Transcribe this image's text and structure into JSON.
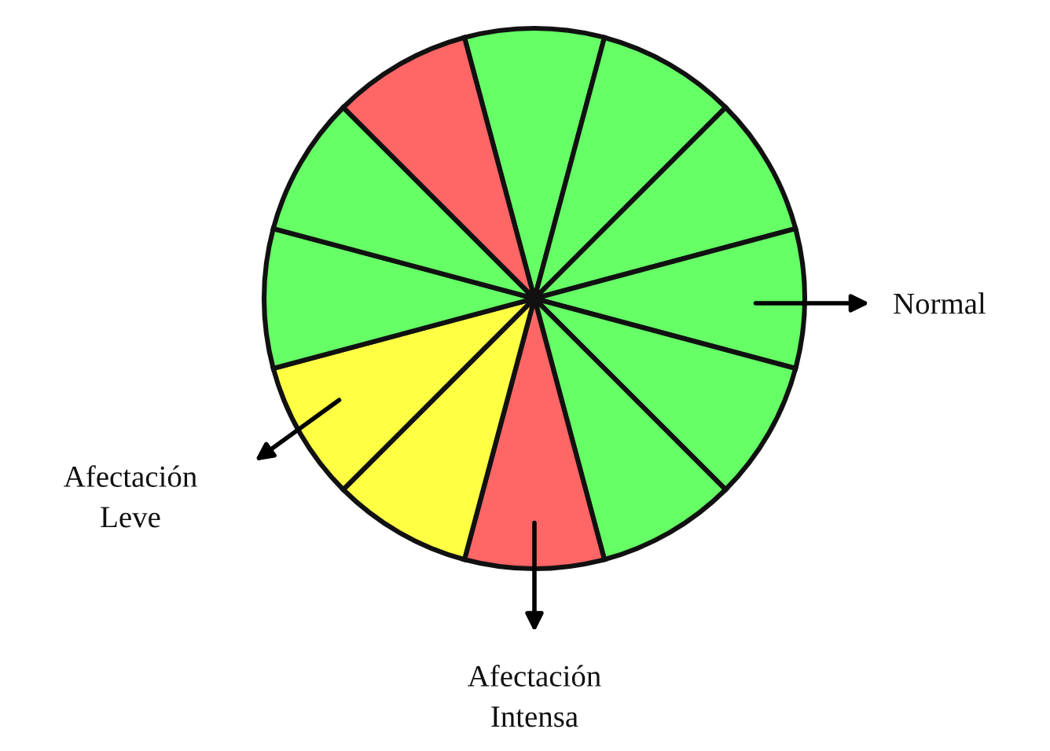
{
  "chart_data": {
    "type": "pie",
    "categories": [
      null,
      null,
      null,
      null,
      null,
      null,
      null,
      null,
      null,
      null,
      null,
      null
    ],
    "values": [
      8.333,
      8.333,
      8.333,
      8.333,
      8.333,
      8.333,
      8.333,
      8.333,
      8.333,
      8.333,
      8.333,
      8.333
    ],
    "colors": [
      "#66ff66",
      "#66ff66",
      "#66ff66",
      "#66ff66",
      "#66ff66",
      "#66ff66",
      "#ff6666",
      "#ffff44",
      "#ffff44",
      "#66ff66",
      "#66ff66",
      "#ff6666"
    ],
    "annotations": [
      "Normal",
      "Afectación\nLeve",
      "Afectación\nIntensa"
    ],
    "legend": false
  }
}
